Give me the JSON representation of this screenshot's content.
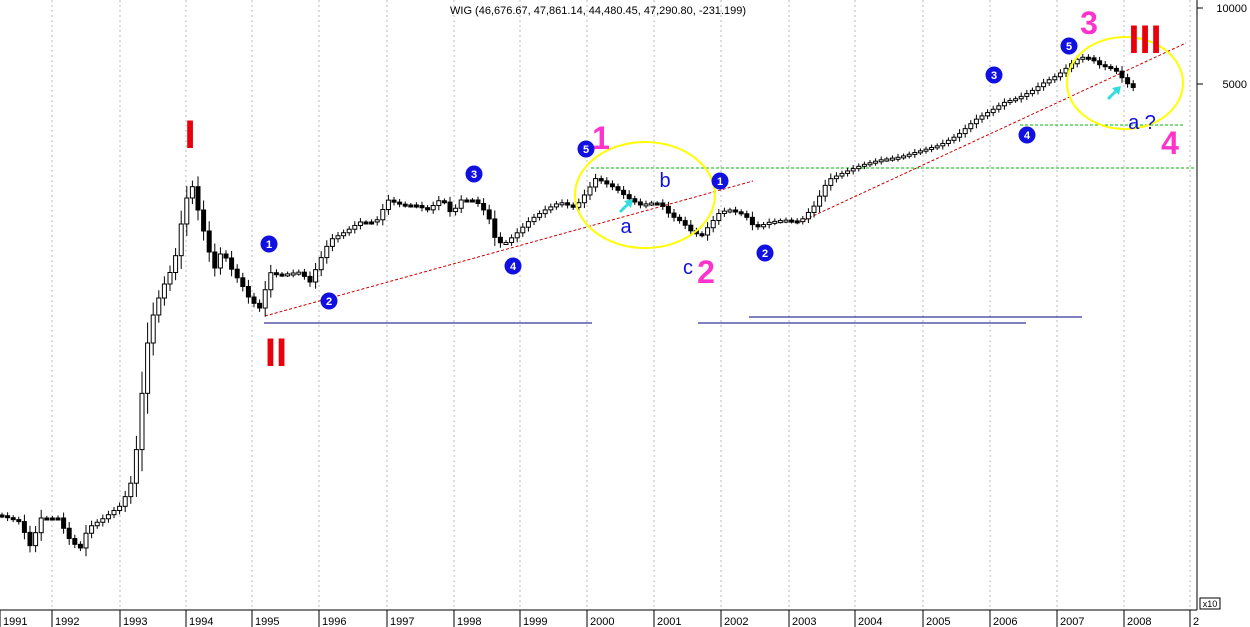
{
  "chart_data": {
    "type": "candlestick",
    "title": "WIG (46,676.67, 47,861.14, 44,480.45, 47,290.80, -231.199)",
    "y_scale": "log",
    "y_tick_labels": [
      "10000",
      "5000"
    ],
    "y_multiplier_label": "x10",
    "x_tick_labels": [
      "1991",
      "1992",
      "1993",
      "1994",
      "1995",
      "1996",
      "1997",
      "1998",
      "1999",
      "2000",
      "2001",
      "2002",
      "2003",
      "2004",
      "2005",
      "2006",
      "2007",
      "2008",
      "2"
    ],
    "grid": "vertical dashed",
    "colors": {
      "up": "#ffffff",
      "down": "#000000",
      "wave_red": "#e8000b",
      "wave_pink": "#ff33cc",
      "wave_blue": "#1010e0",
      "circle": "#ffff00",
      "arrow": "#33dddd",
      "trend": "#cc0000",
      "support_green": "#00bb00",
      "support_blue": "#000080"
    },
    "annotations": {
      "roman": [
        "I",
        "II",
        "III"
      ],
      "big_numbers": [
        "1",
        "2",
        "3",
        "4"
      ],
      "circled": [
        "1",
        "2",
        "3",
        "4",
        "5"
      ],
      "letters": [
        "a",
        "b",
        "c",
        "a ?"
      ]
    }
  }
}
